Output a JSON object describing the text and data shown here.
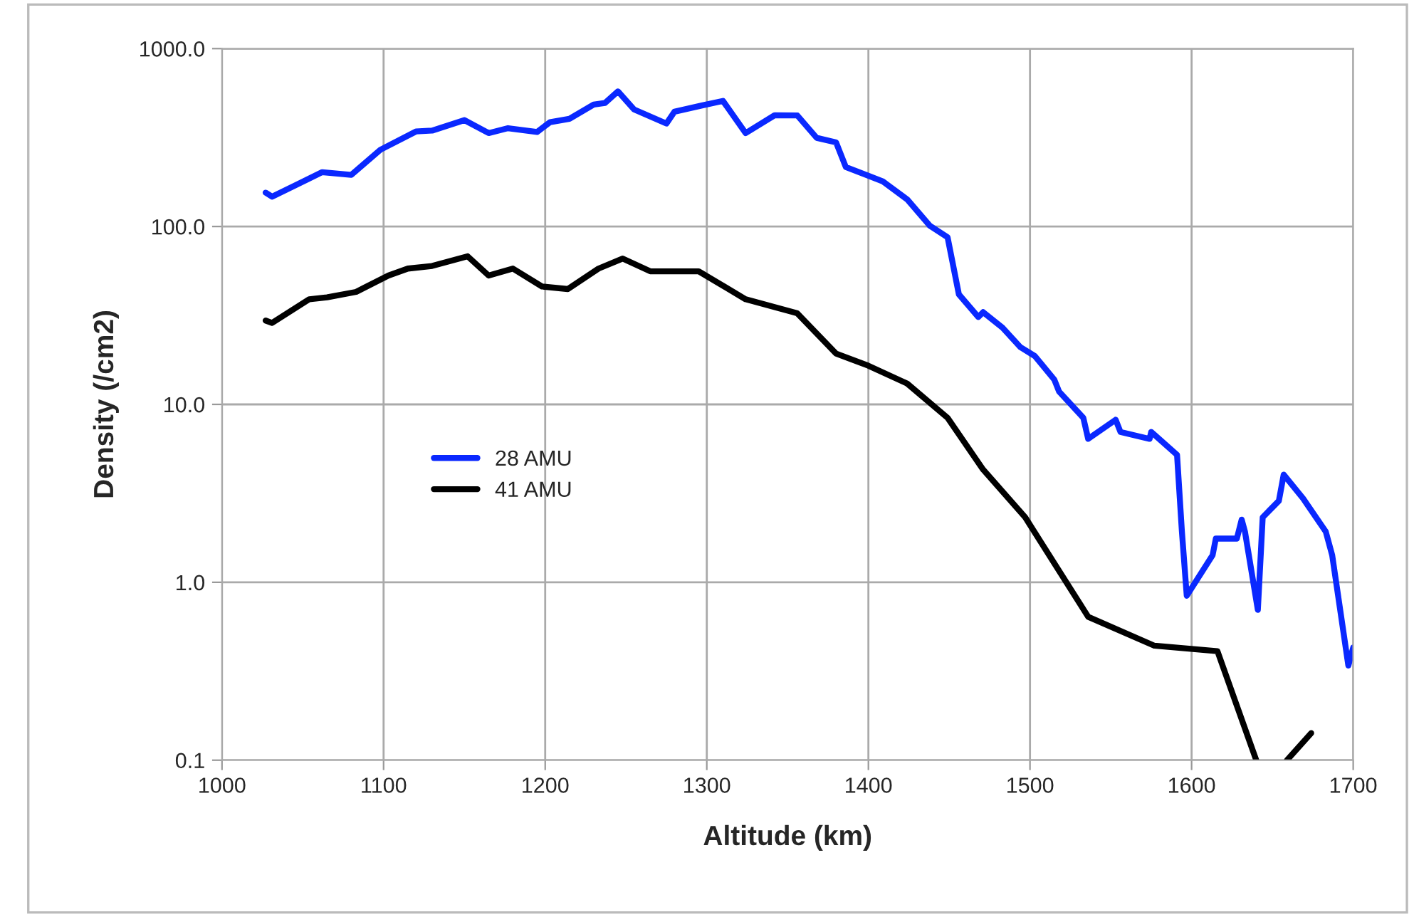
{
  "chart_data": {
    "type": "line",
    "xlabel": "Altitude (km)",
    "ylabel": "Density (/cm2)",
    "log": true,
    "grid": true,
    "legend": "left",
    "marker": "none",
    "line_style": "solid",
    "xlim": [
      1000,
      1700
    ],
    "xticks": [
      1000,
      1100,
      1200,
      1300,
      1400,
      1500,
      1600,
      1700
    ],
    "ylim": [
      0.1,
      1000
    ],
    "yticks": [
      {
        "value": 0.1,
        "label": "0.1"
      },
      {
        "value": 1,
        "label": "1.0"
      },
      {
        "value": 10,
        "label": "10.0"
      },
      {
        "value": 100,
        "label": "100.0"
      },
      {
        "value": 1000,
        "label": "1000.0"
      }
    ],
    "series": [
      {
        "name": "28 AMU",
        "color": "#0a28ff",
        "x": [
          1027,
          1031,
          1062,
          1080,
          1098,
          1120,
          1130,
          1150,
          1165,
          1177,
          1195,
          1203,
          1215,
          1230,
          1237,
          1245,
          1255,
          1275,
          1280,
          1297,
          1310,
          1324,
          1342,
          1356,
          1368,
          1380,
          1386,
          1400,
          1409,
          1424,
          1438,
          1449,
          1456,
          1468,
          1471,
          1483,
          1494,
          1503,
          1515,
          1518,
          1533,
          1536,
          1553,
          1556,
          1574,
          1575,
          1591,
          1594,
          1597,
          1613,
          1615,
          1628,
          1631,
          1633,
          1641,
          1644,
          1654,
          1657,
          1669,
          1672,
          1683,
          1687,
          1697,
          1700
        ],
        "values": [
          155,
          147,
          202,
          195,
          270,
          342,
          346,
          396,
          335,
          357,
          340,
          386,
          403,
          485,
          495,
          575,
          455,
          379,
          442,
          479,
          508,
          335,
          422,
          421,
          315,
          297,
          216,
          193,
          179,
          142,
          101,
          87,
          41.5,
          31,
          33,
          27,
          21,
          18.7,
          13.8,
          11.8,
          8.4,
          6.4,
          8.2,
          7.0,
          6.4,
          7.0,
          5.2,
          1.93,
          0.84,
          1.42,
          1.76,
          1.76,
          2.25,
          1.93,
          0.7,
          2.32,
          2.87,
          4.03,
          2.96,
          2.7,
          1.93,
          1.42,
          0.34,
          0.43
        ]
      },
      {
        "name": "41 AMU",
        "color": "#000000",
        "x": [
          1027,
          1031,
          1054,
          1065,
          1083,
          1103,
          1115,
          1130,
          1152,
          1165,
          1180,
          1198,
          1214,
          1233,
          1248,
          1265,
          1295,
          1324,
          1356,
          1380,
          1400,
          1424,
          1449,
          1471,
          1497,
          1536,
          1577,
          1616,
          1640,
          1650,
          1659,
          1674
        ],
        "values": [
          29.6,
          28.7,
          39,
          40,
          42.9,
          53,
          58,
          60,
          68,
          53,
          58,
          46,
          44.5,
          58,
          66,
          56,
          56,
          39,
          32.5,
          19.3,
          16.5,
          13.1,
          8.4,
          4.3,
          2.32,
          0.64,
          0.44,
          0.41,
          0.1,
          null,
          0.1,
          0.142
        ]
      }
    ]
  }
}
